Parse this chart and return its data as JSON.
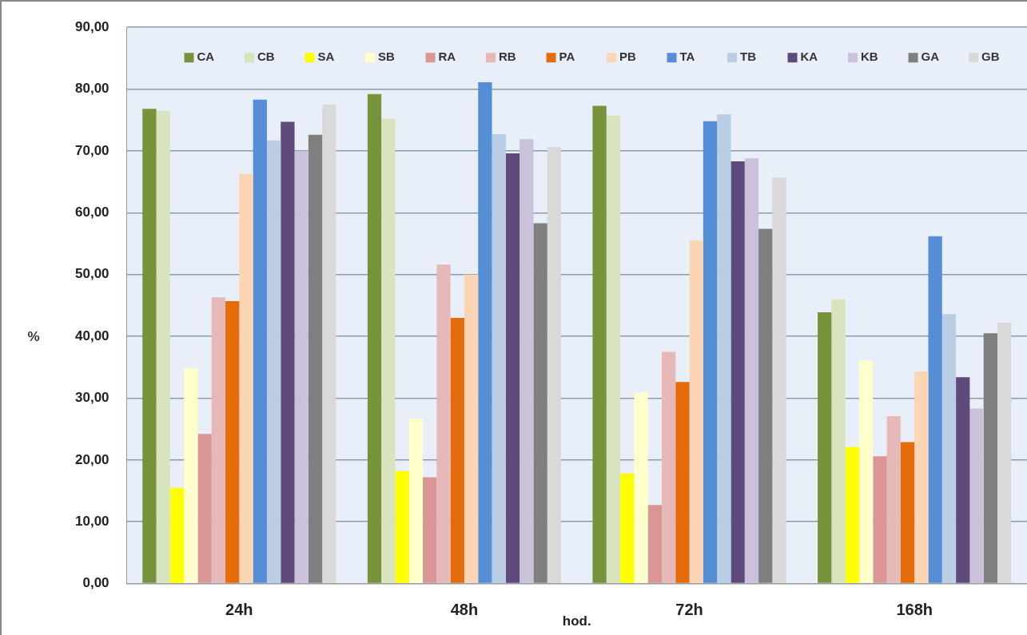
{
  "chart_data": {
    "type": "bar",
    "xlabel": "hod.",
    "ylabel": "%",
    "categories": [
      "24h",
      "48h",
      "72h",
      "168h"
    ],
    "series": [
      {
        "name": "CA",
        "color": "#77933c",
        "values": [
          76.8,
          79.2,
          77.3,
          43.9
        ]
      },
      {
        "name": "CB",
        "color": "#d7e4bd",
        "values": [
          76.5,
          75.2,
          75.7,
          46.0
        ]
      },
      {
        "name": "SA",
        "color": "#ffff00",
        "values": [
          15.5,
          18.2,
          17.8,
          22.1
        ]
      },
      {
        "name": "SB",
        "color": "#ffffcc",
        "values": [
          34.8,
          26.7,
          30.9,
          36.1
        ]
      },
      {
        "name": "RA",
        "color": "#d99694",
        "values": [
          24.2,
          17.2,
          12.7,
          20.6
        ]
      },
      {
        "name": "RB",
        "color": "#e6b9b8",
        "values": [
          46.3,
          51.6,
          37.5,
          27.1
        ]
      },
      {
        "name": "PA",
        "color": "#e46c0a",
        "values": [
          45.7,
          43.0,
          32.6,
          22.9
        ]
      },
      {
        "name": "PB",
        "color": "#fcd5b5",
        "values": [
          66.3,
          50.0,
          55.5,
          34.3
        ]
      },
      {
        "name": "TA",
        "color": "#558ed5",
        "values": [
          78.3,
          81.1,
          74.8,
          56.2
        ]
      },
      {
        "name": "TB",
        "color": "#b9cde5",
        "values": [
          71.7,
          72.7,
          75.9,
          43.6
        ]
      },
      {
        "name": "KA",
        "color": "#604a7b",
        "values": [
          74.7,
          69.6,
          68.3,
          33.4
        ]
      },
      {
        "name": "KB",
        "color": "#ccc1da",
        "values": [
          70.0,
          71.9,
          68.8,
          28.3
        ]
      },
      {
        "name": "GA",
        "color": "#7f7f7f",
        "values": [
          72.6,
          58.3,
          57.4,
          40.5
        ]
      },
      {
        "name": "GB",
        "color": "#d9d9d9",
        "values": [
          77.5,
          70.6,
          65.7,
          42.2
        ]
      }
    ],
    "ylim": [
      0,
      90
    ],
    "yticks": [
      {
        "value": 0,
        "label": "0,00"
      },
      {
        "value": 10,
        "label": "10,00"
      },
      {
        "value": 20,
        "label": "20,00"
      },
      {
        "value": 30,
        "label": "30,00"
      },
      {
        "value": 40,
        "label": "40,00"
      },
      {
        "value": 50,
        "label": "50,00"
      },
      {
        "value": 60,
        "label": "60,00"
      },
      {
        "value": 70,
        "label": "70,00"
      },
      {
        "value": 80,
        "label": "80,00"
      },
      {
        "value": 90,
        "label": "90,00"
      }
    ],
    "grid": "y",
    "legend": "top"
  }
}
